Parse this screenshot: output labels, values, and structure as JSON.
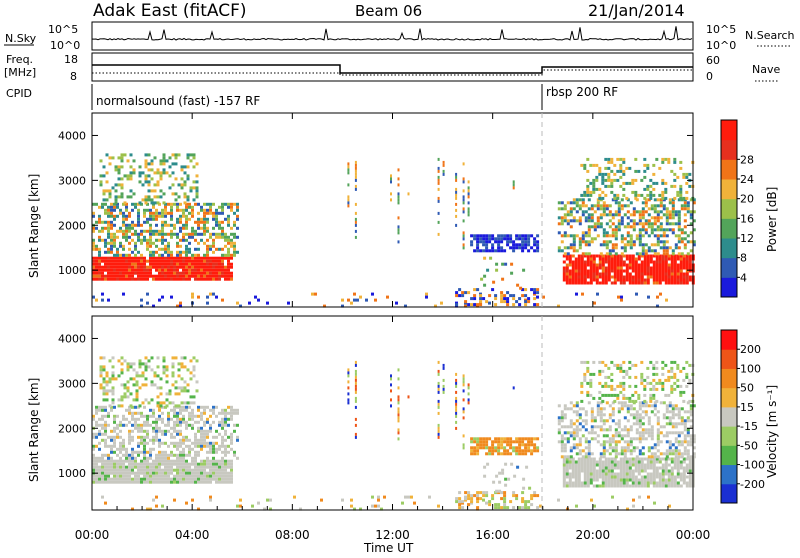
{
  "header": {
    "station": "Adak East (fitACF)",
    "beam": "Beam 06",
    "date": "21/Jan/2014"
  },
  "panels": {
    "nsky": {
      "label": "N.Sky",
      "ticks": [
        "10^5",
        "10^0"
      ],
      "right_label": "N.Search",
      "right_ticks": [
        "10^5",
        "10^0"
      ]
    },
    "freq": {
      "label_line1": "Freq.",
      "label_line2": "[MHz]",
      "ticks": [
        "18",
        "8"
      ],
      "right_label": "Nave",
      "right_ticks": [
        "60",
        "0"
      ]
    },
    "cpid": {
      "label": "CPID",
      "segments": [
        {
          "start_hour": 0,
          "end_hour": 18,
          "text": "normalsound (fast) -157 RF"
        },
        {
          "start_hour": 18,
          "end_hour": 24,
          "text": "rbsp 200 RF"
        }
      ]
    }
  },
  "chart_data": [
    {
      "type": "heatmap",
      "name": "power",
      "ylabel": "Slant Range [km]",
      "yticks": [
        1000,
        2000,
        3000,
        4000
      ],
      "ylim": [
        180,
        4500
      ],
      "xlim_hours": [
        0,
        24
      ],
      "colorbar": {
        "label": "Power [dB]",
        "ticks": [
          "4",
          "8",
          "12",
          "16",
          "20",
          "24",
          "28"
        ],
        "colors": [
          "#1a1adc",
          "#2f5ab4",
          "#2d8c8c",
          "#53a45a",
          "#9cc04a",
          "#f0b23a",
          "#f07418",
          "#e6301e",
          "#ff1c0c"
        ]
      }
    },
    {
      "type": "heatmap",
      "name": "velocity",
      "ylabel": "Slant Range [km]",
      "yticks": [
        1000,
        2000,
        3000,
        4000
      ],
      "ylim": [
        180,
        4500
      ],
      "xlim_hours": [
        0,
        24
      ],
      "colorbar": {
        "label": "Velocity [m s⁻¹]",
        "ticks": [
          "200",
          "100",
          "50",
          "15",
          "-15",
          "-50",
          "-100",
          "-200"
        ],
        "colors": [
          "#1a2fd2",
          "#2c72c8",
          "#54b44a",
          "#9ccc64",
          "#c8c8c0",
          "#f0b23a",
          "#f08a1e",
          "#ee5518",
          "#ff1010"
        ]
      }
    }
  ],
  "xaxis": {
    "label": "Time UT",
    "ticks": [
      "00:00",
      "04:00",
      "08:00",
      "12:00",
      "16:00",
      "20:00",
      "00:00"
    ]
  }
}
